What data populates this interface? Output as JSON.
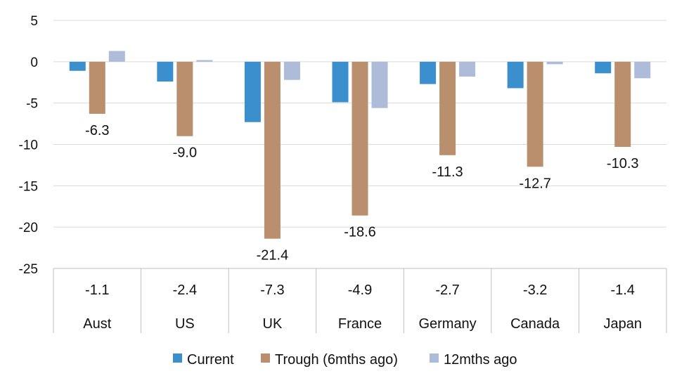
{
  "chart_data": {
    "type": "bar",
    "categories": [
      "Aust",
      "US",
      "UK",
      "France",
      "Germany",
      "Canada",
      "Japan"
    ],
    "series": [
      {
        "name": "Current",
        "values": [
          -1.1,
          -2.4,
          -7.3,
          -4.9,
          -2.7,
          -3.2,
          -1.4
        ],
        "color": "#3a8fcc"
      },
      {
        "name": "Trough (6mths ago)",
        "values": [
          -6.3,
          -9.0,
          -21.4,
          -18.6,
          -11.3,
          -12.7,
          -10.3
        ],
        "color": "#b98f6e"
      },
      {
        "name": "12mths ago",
        "values": [
          1.3,
          0.2,
          -2.2,
          -5.6,
          -1.8,
          -0.3,
          -2.0
        ],
        "color": "#aebcd9"
      }
    ],
    "trough_labels": [
      "-6.3",
      "-9.0",
      "-21.4",
      "-18.6",
      "-11.3",
      "-12.7",
      "-10.3"
    ],
    "table_values": [
      "-1.1",
      "-2.4",
      "-7.3",
      "-4.9",
      "-2.7",
      "-3.2",
      "-1.4"
    ],
    "y_ticks": [
      "5",
      "0",
      "-5",
      "-10",
      "-15",
      "-20",
      "-25"
    ],
    "ylim": [
      -25,
      5
    ],
    "grid": true,
    "legend_position": "bottom",
    "title": "",
    "xlabel": "",
    "ylabel": ""
  }
}
